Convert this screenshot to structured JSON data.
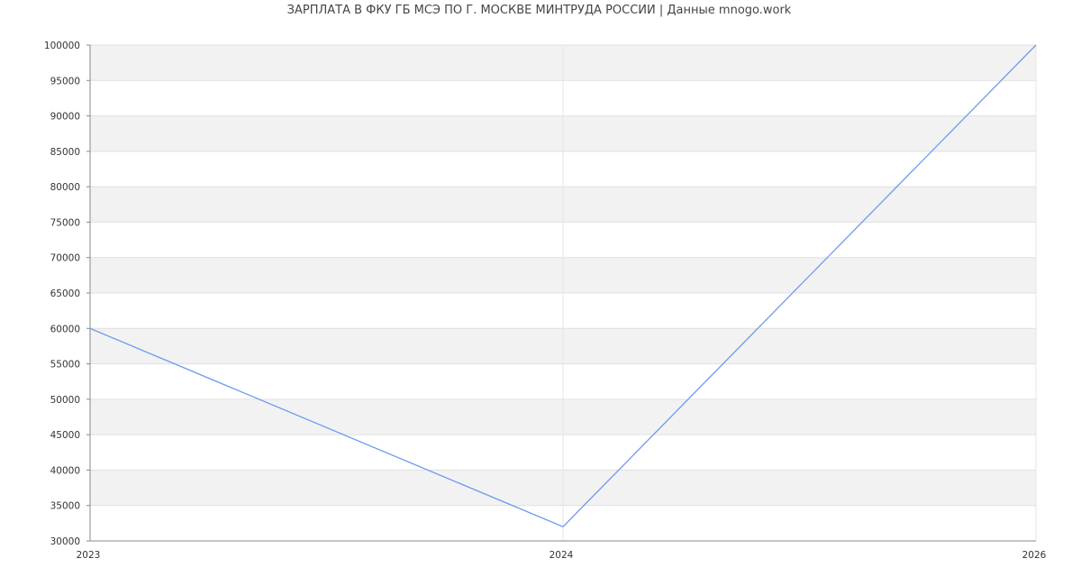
{
  "chart_data": {
    "type": "line",
    "title": "ЗАРПЛАТА В ФКУ ГБ МСЭ ПО Г. МОСКВЕ МИНТРУДА РОССИИ | Данные mnogo.work",
    "categories": [
      "2023",
      "2024",
      "2026"
    ],
    "series": [
      {
        "values": [
          60000,
          32000,
          100000
        ],
        "color": "#6d9af0"
      }
    ],
    "xlabel": "",
    "ylabel": "",
    "ylim": [
      30000,
      100000
    ],
    "yticks": [
      30000,
      35000,
      40000,
      45000,
      50000,
      55000,
      60000,
      65000,
      70000,
      75000,
      80000,
      85000,
      90000,
      95000,
      100000
    ],
    "grid": true,
    "band_color": "#f2f2f2"
  }
}
